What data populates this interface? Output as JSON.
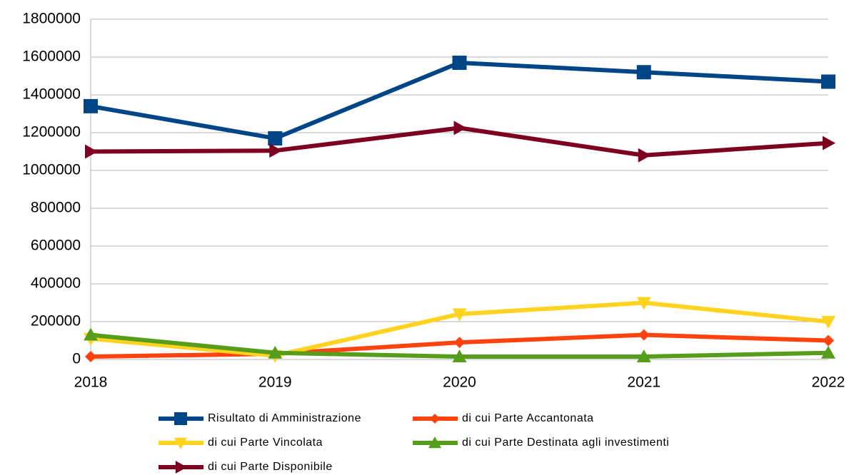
{
  "chart_data": {
    "type": "line",
    "categories": [
      "2018",
      "2019",
      "2020",
      "2021",
      "2022"
    ],
    "series": [
      {
        "name": "Risultato di Amministrazione",
        "color": "#004586",
        "marker": "square",
        "values": [
          1340000,
          1170000,
          1570000,
          1520000,
          1470000
        ]
      },
      {
        "name": "di cui Parte Accantonata",
        "color": "#ff420e",
        "marker": "diamond",
        "values": [
          15000,
          30000,
          90000,
          130000,
          100000
        ]
      },
      {
        "name": "di cui Parte Vincolata",
        "color": "#ffd320",
        "marker": "triangle-down",
        "values": [
          110000,
          20000,
          240000,
          300000,
          200000
        ]
      },
      {
        "name": "di cui Parte Destinata agli investimenti",
        "color": "#579d1c",
        "marker": "triangle-up",
        "values": [
          130000,
          35000,
          15000,
          15000,
          35000
        ]
      },
      {
        "name": "di cui Parte Disponibile",
        "color": "#7e0021",
        "marker": "triangle-right",
        "values": [
          1100000,
          1105000,
          1225000,
          1080000,
          1145000
        ]
      }
    ],
    "ylim": [
      0,
      1800000
    ],
    "yticks": [
      0,
      200000,
      400000,
      600000,
      800000,
      1000000,
      1200000,
      1400000,
      1600000,
      1800000
    ],
    "grid": true,
    "legend": "bottom"
  }
}
